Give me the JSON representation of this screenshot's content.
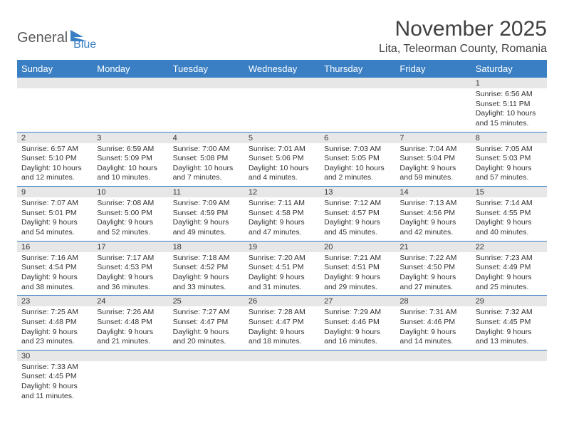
{
  "logo": {
    "text1": "General",
    "text2": "Blue"
  },
  "title": "November 2025",
  "subtitle": "Lita, Teleorman County, Romania",
  "colors": {
    "header_bg": "#3a7fc4",
    "header_text": "#ffffff",
    "daynum_bg": "#e7e7e7",
    "row_divider": "#3a7fc4",
    "body_text": "#333333",
    "logo_gray": "#5a5a5a",
    "logo_blue": "#3a7fc4",
    "background": "#ffffff"
  },
  "typography": {
    "title_fontsize": 30,
    "subtitle_fontsize": 16,
    "header_fontsize": 13,
    "cell_fontsize": 10.5,
    "daynum_fontsize": 11
  },
  "calendar": {
    "days_of_week": [
      "Sunday",
      "Monday",
      "Tuesday",
      "Wednesday",
      "Thursday",
      "Friday",
      "Saturday"
    ],
    "weeks": [
      [
        {
          "num": "",
          "sunrise": "",
          "sunset": "",
          "daylight": ""
        },
        {
          "num": "",
          "sunrise": "",
          "sunset": "",
          "daylight": ""
        },
        {
          "num": "",
          "sunrise": "",
          "sunset": "",
          "daylight": ""
        },
        {
          "num": "",
          "sunrise": "",
          "sunset": "",
          "daylight": ""
        },
        {
          "num": "",
          "sunrise": "",
          "sunset": "",
          "daylight": ""
        },
        {
          "num": "",
          "sunrise": "",
          "sunset": "",
          "daylight": ""
        },
        {
          "num": "1",
          "sunrise": "Sunrise: 6:56 AM",
          "sunset": "Sunset: 5:11 PM",
          "daylight": "Daylight: 10 hours and 15 minutes."
        }
      ],
      [
        {
          "num": "2",
          "sunrise": "Sunrise: 6:57 AM",
          "sunset": "Sunset: 5:10 PM",
          "daylight": "Daylight: 10 hours and 12 minutes."
        },
        {
          "num": "3",
          "sunrise": "Sunrise: 6:59 AM",
          "sunset": "Sunset: 5:09 PM",
          "daylight": "Daylight: 10 hours and 10 minutes."
        },
        {
          "num": "4",
          "sunrise": "Sunrise: 7:00 AM",
          "sunset": "Sunset: 5:08 PM",
          "daylight": "Daylight: 10 hours and 7 minutes."
        },
        {
          "num": "5",
          "sunrise": "Sunrise: 7:01 AM",
          "sunset": "Sunset: 5:06 PM",
          "daylight": "Daylight: 10 hours and 4 minutes."
        },
        {
          "num": "6",
          "sunrise": "Sunrise: 7:03 AM",
          "sunset": "Sunset: 5:05 PM",
          "daylight": "Daylight: 10 hours and 2 minutes."
        },
        {
          "num": "7",
          "sunrise": "Sunrise: 7:04 AM",
          "sunset": "Sunset: 5:04 PM",
          "daylight": "Daylight: 9 hours and 59 minutes."
        },
        {
          "num": "8",
          "sunrise": "Sunrise: 7:05 AM",
          "sunset": "Sunset: 5:03 PM",
          "daylight": "Daylight: 9 hours and 57 minutes."
        }
      ],
      [
        {
          "num": "9",
          "sunrise": "Sunrise: 7:07 AM",
          "sunset": "Sunset: 5:01 PM",
          "daylight": "Daylight: 9 hours and 54 minutes."
        },
        {
          "num": "10",
          "sunrise": "Sunrise: 7:08 AM",
          "sunset": "Sunset: 5:00 PM",
          "daylight": "Daylight: 9 hours and 52 minutes."
        },
        {
          "num": "11",
          "sunrise": "Sunrise: 7:09 AM",
          "sunset": "Sunset: 4:59 PM",
          "daylight": "Daylight: 9 hours and 49 minutes."
        },
        {
          "num": "12",
          "sunrise": "Sunrise: 7:11 AM",
          "sunset": "Sunset: 4:58 PM",
          "daylight": "Daylight: 9 hours and 47 minutes."
        },
        {
          "num": "13",
          "sunrise": "Sunrise: 7:12 AM",
          "sunset": "Sunset: 4:57 PM",
          "daylight": "Daylight: 9 hours and 45 minutes."
        },
        {
          "num": "14",
          "sunrise": "Sunrise: 7:13 AM",
          "sunset": "Sunset: 4:56 PM",
          "daylight": "Daylight: 9 hours and 42 minutes."
        },
        {
          "num": "15",
          "sunrise": "Sunrise: 7:14 AM",
          "sunset": "Sunset: 4:55 PM",
          "daylight": "Daylight: 9 hours and 40 minutes."
        }
      ],
      [
        {
          "num": "16",
          "sunrise": "Sunrise: 7:16 AM",
          "sunset": "Sunset: 4:54 PM",
          "daylight": "Daylight: 9 hours and 38 minutes."
        },
        {
          "num": "17",
          "sunrise": "Sunrise: 7:17 AM",
          "sunset": "Sunset: 4:53 PM",
          "daylight": "Daylight: 9 hours and 36 minutes."
        },
        {
          "num": "18",
          "sunrise": "Sunrise: 7:18 AM",
          "sunset": "Sunset: 4:52 PM",
          "daylight": "Daylight: 9 hours and 33 minutes."
        },
        {
          "num": "19",
          "sunrise": "Sunrise: 7:20 AM",
          "sunset": "Sunset: 4:51 PM",
          "daylight": "Daylight: 9 hours and 31 minutes."
        },
        {
          "num": "20",
          "sunrise": "Sunrise: 7:21 AM",
          "sunset": "Sunset: 4:51 PM",
          "daylight": "Daylight: 9 hours and 29 minutes."
        },
        {
          "num": "21",
          "sunrise": "Sunrise: 7:22 AM",
          "sunset": "Sunset: 4:50 PM",
          "daylight": "Daylight: 9 hours and 27 minutes."
        },
        {
          "num": "22",
          "sunrise": "Sunrise: 7:23 AM",
          "sunset": "Sunset: 4:49 PM",
          "daylight": "Daylight: 9 hours and 25 minutes."
        }
      ],
      [
        {
          "num": "23",
          "sunrise": "Sunrise: 7:25 AM",
          "sunset": "Sunset: 4:48 PM",
          "daylight": "Daylight: 9 hours and 23 minutes."
        },
        {
          "num": "24",
          "sunrise": "Sunrise: 7:26 AM",
          "sunset": "Sunset: 4:48 PM",
          "daylight": "Daylight: 9 hours and 21 minutes."
        },
        {
          "num": "25",
          "sunrise": "Sunrise: 7:27 AM",
          "sunset": "Sunset: 4:47 PM",
          "daylight": "Daylight: 9 hours and 20 minutes."
        },
        {
          "num": "26",
          "sunrise": "Sunrise: 7:28 AM",
          "sunset": "Sunset: 4:47 PM",
          "daylight": "Daylight: 9 hours and 18 minutes."
        },
        {
          "num": "27",
          "sunrise": "Sunrise: 7:29 AM",
          "sunset": "Sunset: 4:46 PM",
          "daylight": "Daylight: 9 hours and 16 minutes."
        },
        {
          "num": "28",
          "sunrise": "Sunrise: 7:31 AM",
          "sunset": "Sunset: 4:46 PM",
          "daylight": "Daylight: 9 hours and 14 minutes."
        },
        {
          "num": "29",
          "sunrise": "Sunrise: 7:32 AM",
          "sunset": "Sunset: 4:45 PM",
          "daylight": "Daylight: 9 hours and 13 minutes."
        }
      ],
      [
        {
          "num": "30",
          "sunrise": "Sunrise: 7:33 AM",
          "sunset": "Sunset: 4:45 PM",
          "daylight": "Daylight: 9 hours and 11 minutes."
        },
        {
          "num": "",
          "sunrise": "",
          "sunset": "",
          "daylight": ""
        },
        {
          "num": "",
          "sunrise": "",
          "sunset": "",
          "daylight": ""
        },
        {
          "num": "",
          "sunrise": "",
          "sunset": "",
          "daylight": ""
        },
        {
          "num": "",
          "sunrise": "",
          "sunset": "",
          "daylight": ""
        },
        {
          "num": "",
          "sunrise": "",
          "sunset": "",
          "daylight": ""
        },
        {
          "num": "",
          "sunrise": "",
          "sunset": "",
          "daylight": ""
        }
      ]
    ]
  }
}
